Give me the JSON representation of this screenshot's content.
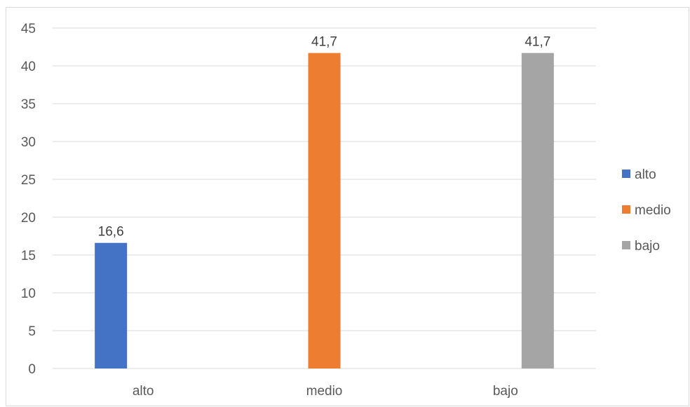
{
  "chart_data": {
    "type": "bar",
    "categories": [
      "alto",
      "medio",
      "bajo"
    ],
    "series": [
      {
        "name": "alto",
        "color": "#4472C4",
        "values": [
          16.6,
          null,
          null
        ]
      },
      {
        "name": "medio",
        "color": "#ED7D31",
        "values": [
          null,
          41.7,
          null
        ]
      },
      {
        "name": "bajo",
        "color": "#A5A5A5",
        "values": [
          null,
          null,
          41.7
        ]
      }
    ],
    "data_labels": [
      "16,6",
      "41,7",
      "41,7"
    ],
    "y_ticks": [
      "0",
      "5",
      "10",
      "15",
      "20",
      "25",
      "30",
      "35",
      "40",
      "45"
    ],
    "ylim": [
      0,
      45
    ],
    "title": "",
    "xlabel": "",
    "ylabel": "",
    "grid": true,
    "legend_position": "right"
  }
}
